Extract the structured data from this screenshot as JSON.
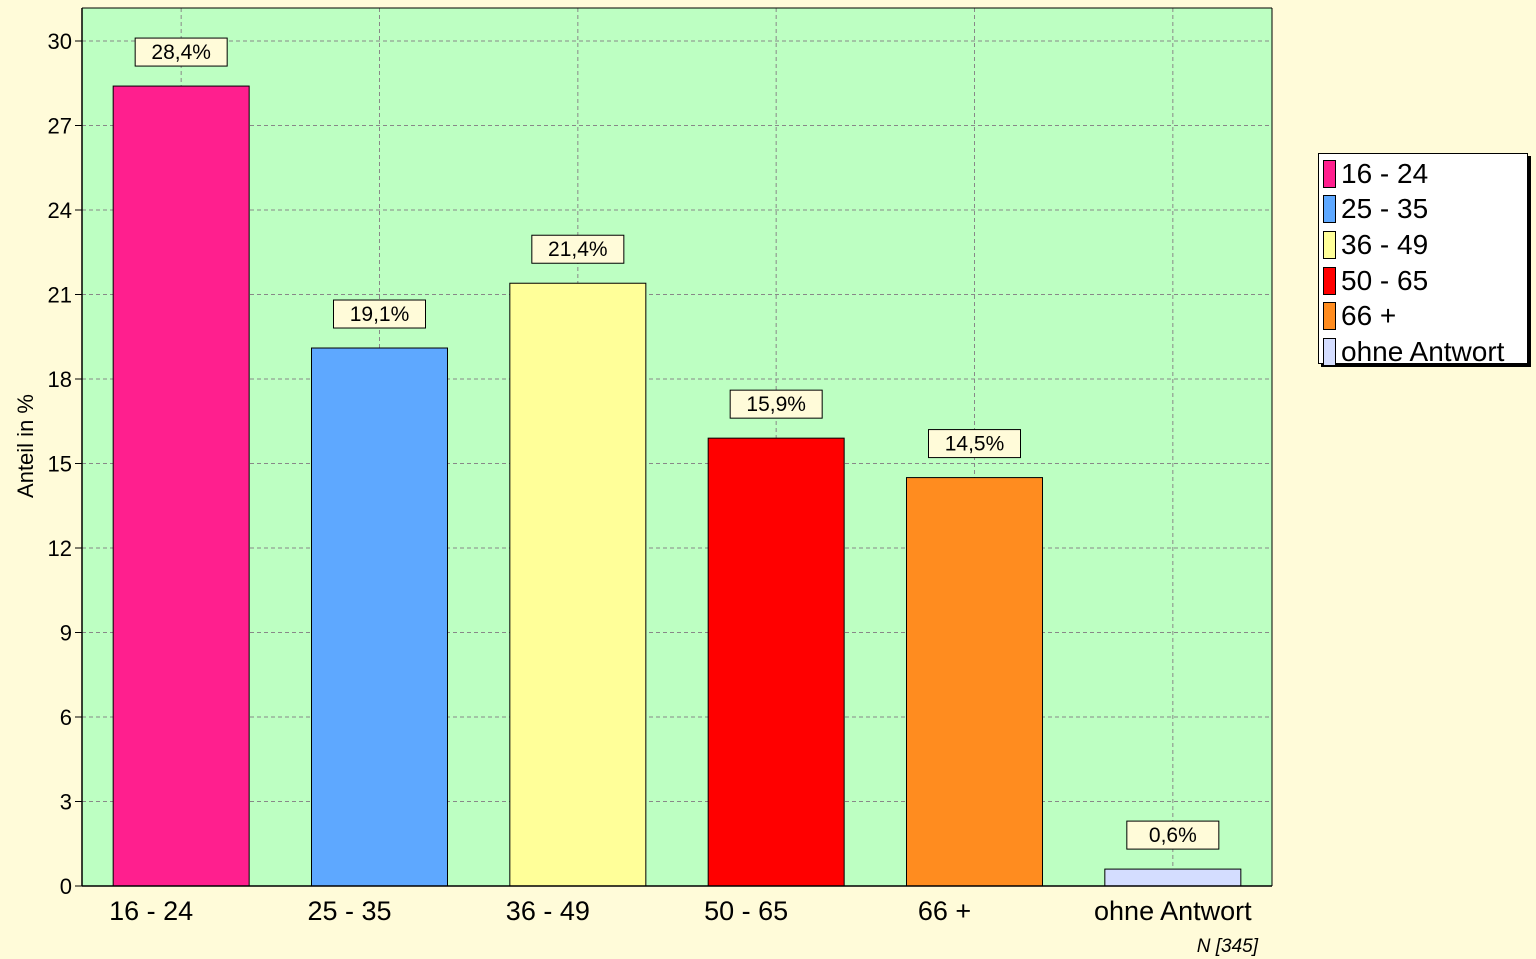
{
  "chart_data": {
    "type": "bar",
    "categories": [
      "16 - 24",
      "25 - 35",
      "36 - 49",
      "50 - 65",
      "66 +",
      "ohne Antwort"
    ],
    "values": [
      28.4,
      19.1,
      21.4,
      15.9,
      14.5,
      0.6
    ],
    "data_labels": [
      "28,4%",
      "19,1%",
      "21,4%",
      "15,9%",
      "14,5%",
      "0,6%"
    ],
    "colors": [
      "#ff1f8e",
      "#5ea8ff",
      "#ffff99",
      "#ff0000",
      "#ff8c1f",
      "#d4ddff"
    ],
    "ylabel": "Anteil in %",
    "xlabel": "",
    "title": "",
    "ylim": [
      0,
      30
    ],
    "yticks": [
      0,
      3,
      6,
      9,
      12,
      15,
      18,
      21,
      24,
      27,
      30
    ],
    "grid": true,
    "legend_position": "right",
    "plot_background": "#bdffc2",
    "footnote": "N [345]"
  }
}
